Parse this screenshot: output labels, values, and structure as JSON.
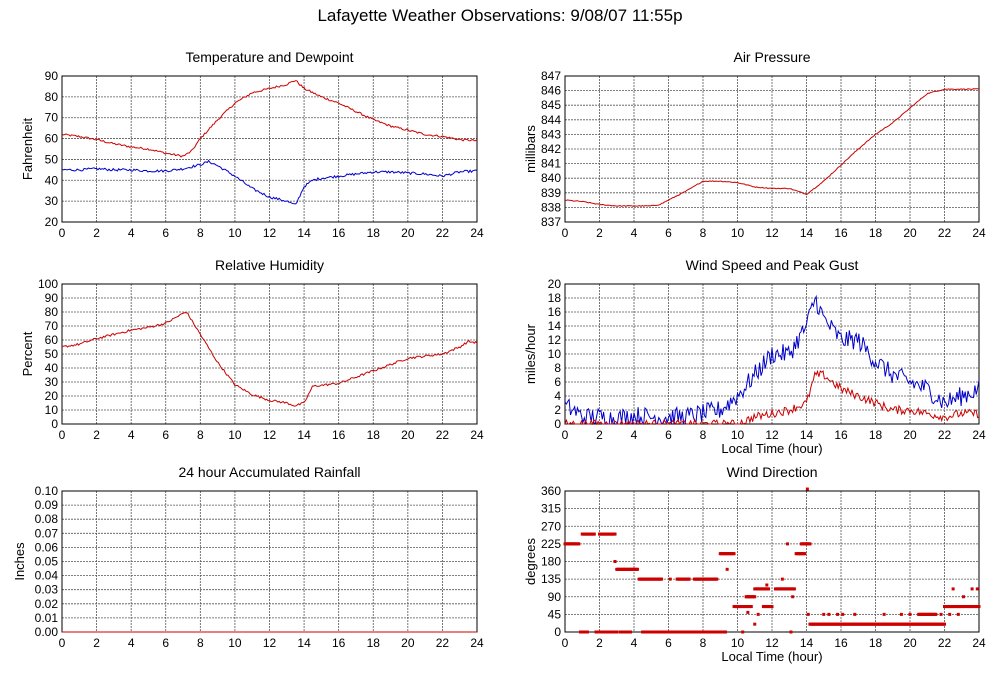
{
  "title": "Lafayette Weather Observations: 9/08/07 11:55p",
  "colors": {
    "red": "#cc0000",
    "blue": "#0000cc",
    "grid": "#555555"
  },
  "chart_data": [
    {
      "id": "temp",
      "type": "line",
      "title": "Temperature and Dewpoint",
      "xlabel": "",
      "ylabel": "Fahrenheit",
      "xlim": [
        0,
        24
      ],
      "ylim": [
        20,
        90
      ],
      "xticks": [
        0,
        2,
        4,
        6,
        8,
        10,
        12,
        14,
        16,
        18,
        20,
        22,
        24
      ],
      "yticks": [
        20,
        30,
        40,
        50,
        60,
        70,
        80,
        90
      ],
      "grid": true,
      "series": [
        {
          "color": "red",
          "noise": 0.5,
          "x": [
            0,
            1,
            2,
            3,
            4,
            5,
            6,
            7,
            7.5,
            8,
            9,
            10,
            11,
            12,
            13,
            13.5,
            14,
            15,
            16,
            17,
            18,
            19,
            20,
            21,
            22,
            23,
            24
          ],
          "y": [
            62,
            61,
            59.5,
            57.5,
            56,
            55,
            53,
            51.5,
            54,
            60,
            69,
            77,
            82,
            84,
            86,
            88,
            84,
            80,
            77,
            73,
            69,
            66,
            64,
            62,
            61,
            59.5,
            59
          ]
        },
        {
          "color": "blue",
          "noise": 0.6,
          "x": [
            0,
            1,
            2,
            3,
            4,
            5,
            6,
            7,
            8,
            8.5,
            9,
            10,
            11,
            12,
            13,
            13.5,
            14,
            14.5,
            15,
            16,
            17,
            18,
            19,
            20,
            21,
            22,
            23,
            24
          ],
          "y": [
            45,
            45,
            45.5,
            45,
            45,
            44.5,
            44.5,
            45.5,
            47.5,
            49,
            47,
            42,
            36,
            32,
            30,
            28,
            37,
            40,
            41,
            42,
            43,
            44,
            44,
            43.5,
            43,
            42,
            44,
            44.5
          ]
        }
      ]
    },
    {
      "id": "pressure",
      "type": "line",
      "title": "Air Pressure",
      "xlabel": "",
      "ylabel": "millibars",
      "xlim": [
        0,
        24
      ],
      "ylim": [
        837,
        847
      ],
      "xticks": [
        0,
        2,
        4,
        6,
        8,
        10,
        12,
        14,
        16,
        18,
        20,
        22,
        24
      ],
      "yticks": [
        837,
        838,
        839,
        840,
        841,
        842,
        843,
        844,
        845,
        846,
        847
      ],
      "grid": true,
      "series": [
        {
          "color": "red",
          "noise": 0.03,
          "x": [
            0,
            1,
            2,
            3,
            4,
            5,
            5.5,
            6,
            7,
            8,
            9,
            10,
            11,
            12,
            13,
            14,
            15,
            16,
            17,
            18,
            19,
            20,
            21,
            22,
            23,
            24
          ],
          "y": [
            838.5,
            838.4,
            838.2,
            838.1,
            838.1,
            838.1,
            838.2,
            838.5,
            839.1,
            839.8,
            839.8,
            839.7,
            839.4,
            839.3,
            839.3,
            838.9,
            839.8,
            840.9,
            842.0,
            843.0,
            843.8,
            844.8,
            845.8,
            846.1,
            846.1,
            846.1
          ]
        }
      ]
    },
    {
      "id": "humidity",
      "type": "line",
      "title": "Relative Humidity",
      "xlabel": "",
      "ylabel": "Percent",
      "xlim": [
        0,
        24
      ],
      "ylim": [
        0,
        100
      ],
      "xticks": [
        0,
        2,
        4,
        6,
        8,
        10,
        12,
        14,
        16,
        18,
        20,
        22,
        24
      ],
      "yticks": [
        0,
        10,
        20,
        30,
        40,
        50,
        60,
        70,
        80,
        90,
        100
      ],
      "grid": true,
      "series": [
        {
          "color": "red",
          "noise": 0.8,
          "x": [
            0,
            1,
            2,
            3,
            4,
            5,
            6,
            7,
            7.2,
            8,
            9,
            10,
            11,
            12,
            13,
            13.5,
            14,
            14.5,
            16,
            18,
            20,
            22,
            23,
            23.5,
            24
          ],
          "y": [
            55,
            57,
            61,
            64,
            67,
            69,
            72,
            79,
            80,
            64,
            44,
            28,
            21,
            17,
            15,
            13,
            15,
            27,
            29,
            38,
            47,
            50,
            55,
            59,
            58
          ]
        }
      ]
    },
    {
      "id": "wind",
      "type": "line",
      "title": "Wind Speed and Peak Gust",
      "xlabel": "Local Time (hour)",
      "ylabel": "miles/hour",
      "xlim": [
        0,
        24
      ],
      "ylim": [
        0,
        20
      ],
      "xticks": [
        0,
        2,
        4,
        6,
        8,
        10,
        12,
        14,
        16,
        18,
        20,
        22,
        24
      ],
      "yticks": [
        0,
        2,
        4,
        6,
        8,
        10,
        12,
        14,
        16,
        18,
        20
      ],
      "grid": true,
      "series": [
        {
          "color": "blue",
          "noise": 1.4,
          "floor": 0,
          "x": [
            0,
            0.5,
            1,
            2,
            3,
            4,
            5,
            6,
            7,
            8,
            9,
            9.5,
            10,
            11,
            12,
            13,
            14,
            14.5,
            15,
            16,
            17,
            18,
            19,
            20,
            21,
            22,
            23,
            24
          ],
          "y": [
            2.5,
            2,
            1,
            1,
            0.8,
            1.2,
            1,
            1,
            1,
            1.5,
            2,
            3,
            4,
            7,
            10,
            10,
            14,
            18,
            15,
            12,
            12,
            9,
            7,
            6,
            5,
            3,
            4,
            5
          ]
        },
        {
          "color": "red",
          "noise": 0.6,
          "floor": 0,
          "x": [
            0,
            9,
            10,
            10.5,
            11,
            12,
            13,
            14,
            14.5,
            15,
            16,
            17,
            18,
            19,
            20,
            21,
            22,
            23,
            24
          ],
          "y": [
            0,
            0,
            0,
            0.5,
            1,
            1.5,
            2,
            3,
            7,
            7,
            5,
            4,
            3,
            2,
            2,
            1.5,
            1,
            1.5,
            1.5
          ]
        }
      ]
    },
    {
      "id": "rain",
      "type": "line",
      "title": "24 hour Accumulated Rainfall",
      "xlabel": "",
      "ylabel": "Inches",
      "xlim": [
        0,
        24
      ],
      "ylim": [
        0,
        0.1
      ],
      "xticks": [
        0,
        2,
        4,
        6,
        8,
        10,
        12,
        14,
        16,
        18,
        20,
        22,
        24
      ],
      "yticks": [
        "0.00",
        "0.01",
        "0.02",
        "0.03",
        "0.04",
        "0.05",
        "0.06",
        "0.07",
        "0.08",
        "0.09",
        "0.10"
      ],
      "grid": true,
      "series": [
        {
          "color": "red",
          "noise": 0,
          "x": [
            0,
            24
          ],
          "y": [
            0,
            0
          ]
        }
      ]
    },
    {
      "id": "direction",
      "type": "scatter",
      "title": "Wind Direction",
      "xlabel": "Local Time (hour)",
      "ylabel": "degrees",
      "xlim": [
        0,
        24
      ],
      "ylim": [
        0,
        360
      ],
      "xticks": [
        0,
        2,
        4,
        6,
        8,
        10,
        12,
        14,
        16,
        18,
        20,
        22,
        24
      ],
      "yticks": [
        0,
        45,
        90,
        135,
        180,
        225,
        270,
        315,
        360
      ],
      "grid": true,
      "segments": [
        {
          "x0": 0,
          "x1": 0.8,
          "y": 225
        },
        {
          "x0": 0.9,
          "x1": 1.3,
          "y": 0
        },
        {
          "x0": 1.0,
          "x1": 1.7,
          "y": 250
        },
        {
          "x0": 2.0,
          "x1": 2.9,
          "y": 250
        },
        {
          "x0": 1.8,
          "x1": 3.0,
          "y": 0
        },
        {
          "x0": 3.0,
          "x1": 4.2,
          "y": 160
        },
        {
          "x0": 3.2,
          "x1": 3.8,
          "y": 0
        },
        {
          "x0": 4.3,
          "x1": 5.6,
          "y": 135
        },
        {
          "x0": 4.5,
          "x1": 9.3,
          "y": 0
        },
        {
          "x0": 6.5,
          "x1": 7.2,
          "y": 135
        },
        {
          "x0": 7.5,
          "x1": 8.8,
          "y": 135
        },
        {
          "x0": 9.0,
          "x1": 9.8,
          "y": 200
        },
        {
          "x0": 9.8,
          "x1": 10.8,
          "y": 65
        },
        {
          "x0": 10.5,
          "x1": 11.0,
          "y": 90
        },
        {
          "x0": 11.0,
          "x1": 11.8,
          "y": 110
        },
        {
          "x0": 11.5,
          "x1": 12.0,
          "y": 65
        },
        {
          "x0": 12.2,
          "x1": 13.3,
          "y": 110
        },
        {
          "x0": 13.4,
          "x1": 13.9,
          "y": 200
        },
        {
          "x0": 13.7,
          "x1": 14.2,
          "y": 225
        },
        {
          "x0": 14.2,
          "x1": 22.0,
          "y": 20
        },
        {
          "x0": 20.5,
          "x1": 21.5,
          "y": 45
        },
        {
          "x0": 22.0,
          "x1": 23.2,
          "y": 65
        },
        {
          "x0": 23.3,
          "x1": 24.0,
          "y": 65
        }
      ],
      "points": [
        [
          0.4,
          225
        ],
        [
          2.3,
          0
        ],
        [
          2.9,
          180
        ],
        [
          5.7,
          0
        ],
        [
          6.1,
          135
        ],
        [
          9.4,
          160
        ],
        [
          10.3,
          0
        ],
        [
          10.6,
          50
        ],
        [
          11.0,
          20
        ],
        [
          11.2,
          45
        ],
        [
          11.7,
          120
        ],
        [
          12.6,
          135
        ],
        [
          12.9,
          225
        ],
        [
          13.1,
          0
        ],
        [
          13.2,
          90
        ],
        [
          14.05,
          365
        ],
        [
          14.1,
          45
        ],
        [
          15.0,
          45
        ],
        [
          15.3,
          45
        ],
        [
          15.8,
          45
        ],
        [
          16.1,
          45
        ],
        [
          16.8,
          45
        ],
        [
          18.5,
          45
        ],
        [
          19.5,
          45
        ],
        [
          20.0,
          45
        ],
        [
          22.3,
          45
        ],
        [
          22.8,
          45
        ],
        [
          23.1,
          90
        ],
        [
          23.6,
          110
        ],
        [
          23.9,
          110
        ],
        [
          21.8,
          45
        ],
        [
          22.5,
          110
        ]
      ]
    }
  ]
}
